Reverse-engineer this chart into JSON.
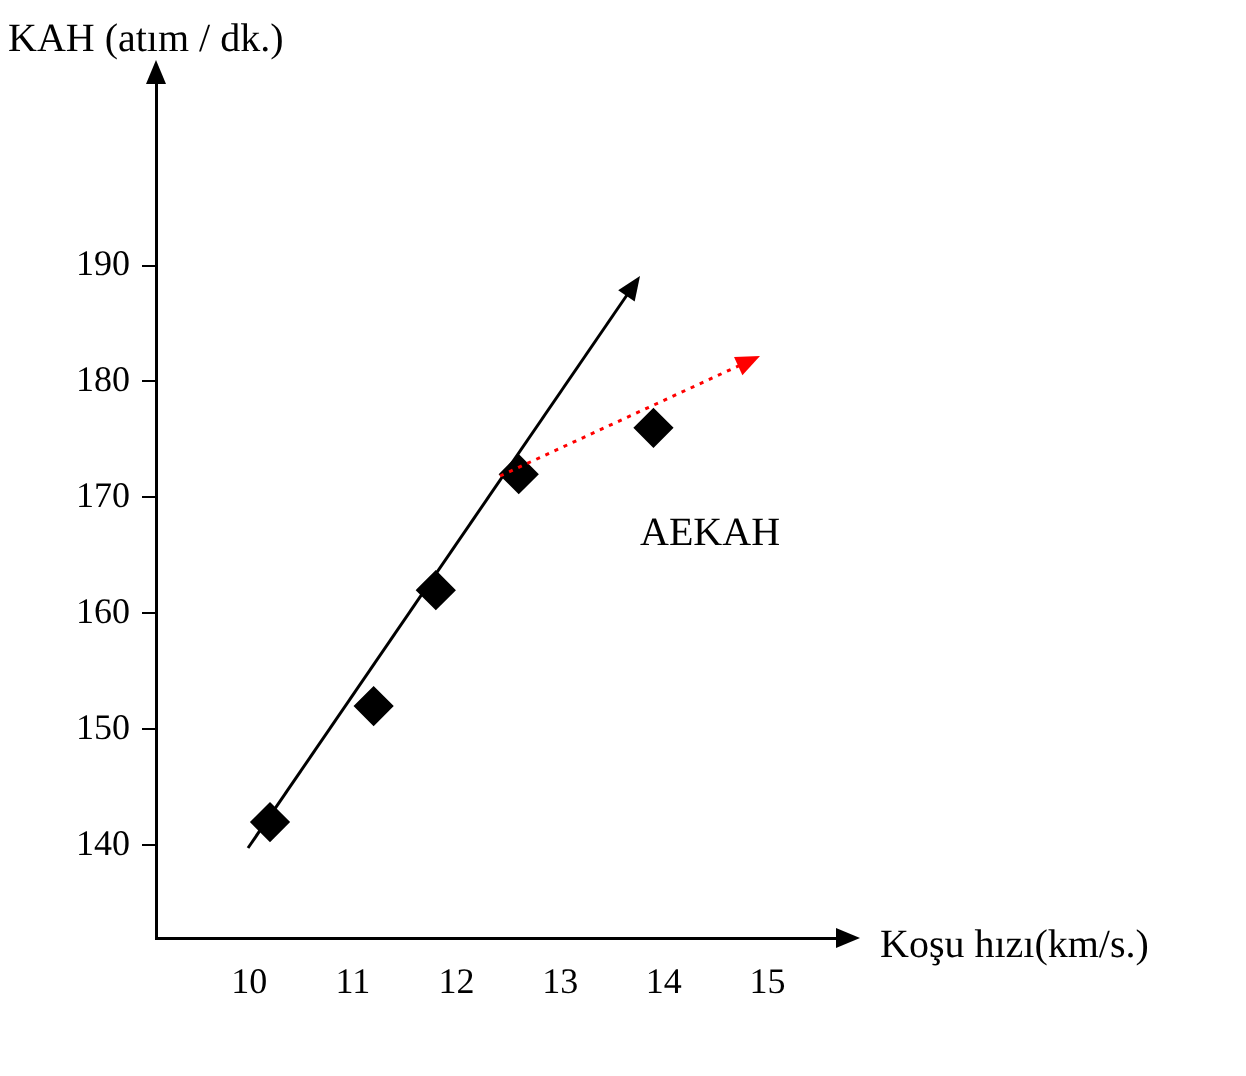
{
  "chart_data": {
    "type": "scatter",
    "xlabel": "Koşu hızı(km/s.)",
    "ylabel": "KAH (atım / dk.)",
    "x": [
      10.2,
      11.2,
      11.8,
      12.6,
      13.9
    ],
    "xlim": [
      9.1,
      15.7
    ],
    "ylim": [
      132,
      206
    ],
    "xticks": [
      10,
      11,
      12,
      13,
      14,
      15
    ],
    "yticks": [
      140,
      150,
      160,
      170,
      180,
      190
    ],
    "grid": false,
    "legend": false,
    "annotations": [
      "AEKAH"
    ],
    "series": [
      {
        "type": "scatter",
        "color": "#000000",
        "marker": "diamond",
        "values": [
          142,
          152,
          162,
          172,
          176
        ]
      }
    ]
  }
}
